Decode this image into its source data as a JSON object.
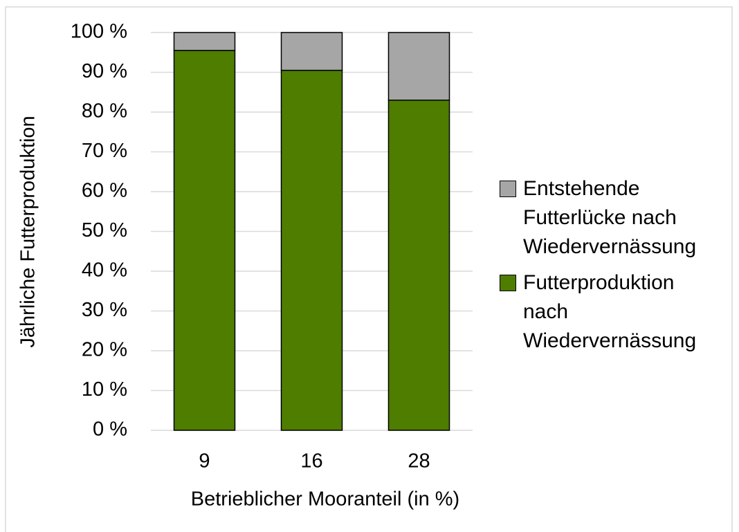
{
  "chart_data": {
    "type": "stacked_bar",
    "x_label": "Betrieblicher Mooranteil (in %)",
    "y_label": "Jährliche Futterproduktion",
    "categories": [
      "9",
      "16",
      "28"
    ],
    "series": [
      {
        "name": "Futterproduktion nach Wiedervernässung",
        "color": "#4e7d00",
        "values": [
          95.5,
          90.5,
          83
        ]
      },
      {
        "name": "Entstehende Futterlücke nach Wiedervernässung",
        "color": "#a6a6a6",
        "values": [
          4.5,
          9.5,
          17
        ]
      }
    ],
    "ylim": [
      0,
      100
    ],
    "yticks": [
      {
        "value": 0,
        "label": "0 %"
      },
      {
        "value": 10,
        "label": "10 %"
      },
      {
        "value": 20,
        "label": "20 %"
      },
      {
        "value": 30,
        "label": "30 %"
      },
      {
        "value": 40,
        "label": "40 %"
      },
      {
        "value": 50,
        "label": "50 %"
      },
      {
        "value": 60,
        "label": "60 %"
      },
      {
        "value": 70,
        "label": "70 %"
      },
      {
        "value": 80,
        "label": "80 %"
      },
      {
        "value": 90,
        "label": "90 %"
      },
      {
        "value": 100,
        "label": "100 %"
      }
    ],
    "grid": true,
    "legend": "right"
  }
}
